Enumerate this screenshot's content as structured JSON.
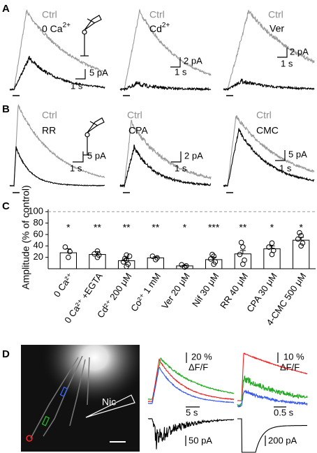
{
  "panel_a": {
    "label": "A",
    "recordings": [
      {
        "control": "Ctrl",
        "drug": "0 Ca",
        "drug_sup": "2+",
        "y_scale": "5 pA",
        "x_scale": "1 s"
      },
      {
        "control": "Ctrl",
        "drug": "Cd",
        "drug_sup": "2+",
        "y_scale": "2 pA",
        "x_scale": "1 s"
      },
      {
        "control": "Ctrl",
        "drug": "Ver",
        "y_scale": "2 pA",
        "x_scale": "1 s"
      }
    ]
  },
  "panel_b": {
    "label": "B",
    "recordings": [
      {
        "control": "Ctrl",
        "drug": "RR",
        "y_scale": "5 pA",
        "x_scale": "1 s"
      },
      {
        "control": "Ctrl",
        "drug": "CPA",
        "y_scale": "2 pA",
        "x_scale": "1 s"
      },
      {
        "control": "Ctrl",
        "drug": "CMC",
        "y_scale": "5 pA",
        "x_scale": "1 s"
      }
    ]
  },
  "chart_data": {
    "type": "bar",
    "panel_label": "C",
    "y_label": "Amplitude (% of control)",
    "categories": [
      "0 Ca²⁺",
      "0 Ca²⁺ +EGTA",
      "Cd²⁺ 200 μM",
      "Co²⁺ 1 mM",
      "Ver 20 μM",
      "Nif 30 μM",
      "RR 40 μM",
      "CPA 30 μM",
      "4-CMC 500 μM"
    ],
    "values": [
      28,
      25,
      14,
      19,
      5,
      16,
      26,
      35,
      50
    ],
    "errors": [
      7,
      5,
      4,
      2,
      1,
      4,
      6,
      5,
      5
    ],
    "points": [
      [
        20,
        30,
        38
      ],
      [
        20,
        24,
        26,
        31
      ],
      [
        4,
        8,
        12,
        15,
        18,
        22,
        24
      ],
      [
        16,
        19,
        22
      ],
      [
        3,
        5,
        7
      ],
      [
        8,
        12,
        17,
        22,
        25
      ],
      [
        8,
        15,
        25,
        38,
        46
      ],
      [
        25,
        32,
        38,
        45
      ],
      [
        40,
        45,
        52,
        58,
        63
      ]
    ],
    "significance": [
      "*",
      "**",
      "**",
      "**",
      "*",
      "***",
      "**",
      "*",
      "*"
    ],
    "color": "#ffffff",
    "edge_color": "#000000",
    "ylim": [
      0,
      104
    ],
    "yticks": [
      20,
      40,
      60,
      80,
      100
    ],
    "reference_line": 100
  },
  "panel_d": {
    "label": "D",
    "stimulus": "Nic",
    "imaging": [
      {
        "y_scale": "20 %",
        "y_unit": "ΔF/F",
        "x_scale": "5 s",
        "current_scale": "50 pA"
      },
      {
        "y_scale": "10 %",
        "y_unit": "ΔF/F",
        "x_scale": "0.5 s",
        "current_scale": "200 pA"
      }
    ]
  }
}
